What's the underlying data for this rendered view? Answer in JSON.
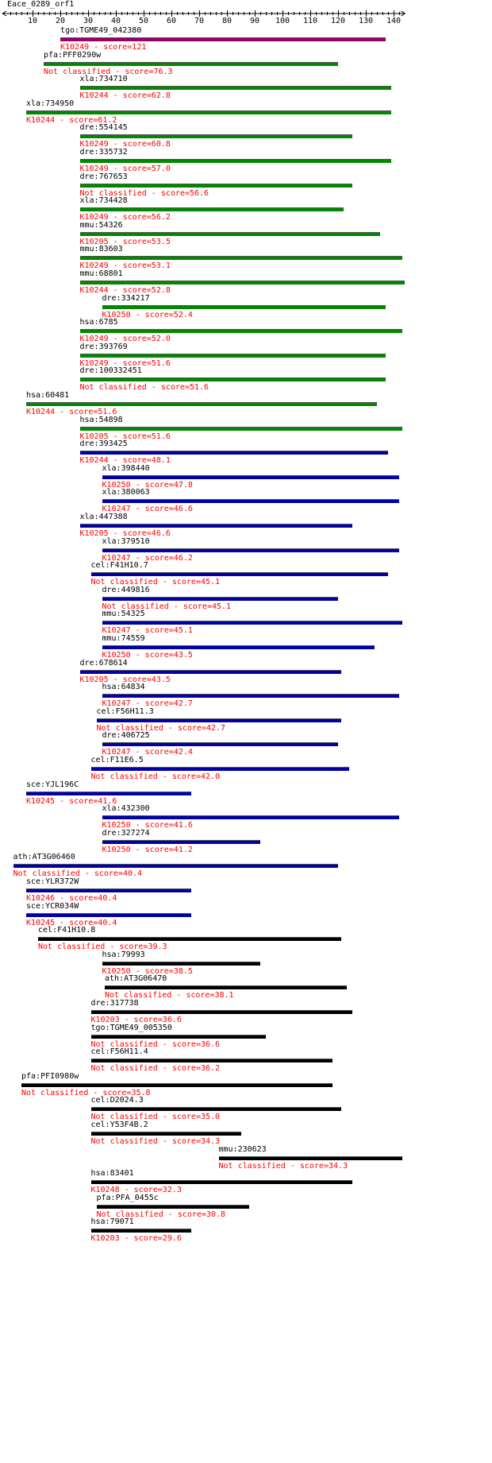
{
  "query": {
    "title": "Eace_0289_orf1"
  },
  "axis": {
    "min": 1,
    "max": 143,
    "ticks": [
      10,
      20,
      30,
      40,
      50,
      60,
      70,
      80,
      90,
      100,
      110,
      120,
      130,
      140
    ]
  },
  "colors": {
    "purple": "#990066",
    "green": "#008800",
    "blue": "#0000aa",
    "black": "#000000",
    "label": "#ff0000"
  },
  "hits": [
    {
      "name": "tgo:TGME49_042380",
      "label": "K10249 - score=121",
      "start": 20,
      "end": 137,
      "color": "purple"
    },
    {
      "name": "pfa:PFF0290w",
      "label": "Not classified - score=76.3",
      "start": 14,
      "end": 120,
      "color": "green"
    },
    {
      "name": "xla:734710",
      "label": "K10244 - score=62.8",
      "start": 27,
      "end": 139,
      "color": "green"
    },
    {
      "name": "xla:734950",
      "label": "K10244 - score=61.2",
      "start": 1,
      "end": 139,
      "color": "green"
    },
    {
      "name": "dre:554145",
      "label": "K10249 - score=60.8",
      "start": 27,
      "end": 125,
      "color": "green"
    },
    {
      "name": "dre:335732",
      "label": "K10249 - score=57.0",
      "start": 27,
      "end": 139,
      "color": "green"
    },
    {
      "name": "dre:767653",
      "label": "Not classified - score=56.6",
      "start": 27,
      "end": 125,
      "color": "green"
    },
    {
      "name": "xla:734428",
      "label": "K10249 - score=56.2",
      "start": 27,
      "end": 122,
      "color": "green"
    },
    {
      "name": "mmu:54326",
      "label": "K10205 - score=53.5",
      "start": 27,
      "end": 135,
      "color": "green"
    },
    {
      "name": "mmu:83603",
      "label": "K10249 - score=53.1",
      "start": 27,
      "end": 143,
      "color": "green"
    },
    {
      "name": "mmu:68801",
      "label": "K10244 - score=52.8",
      "start": 27,
      "end": 144,
      "color": "green"
    },
    {
      "name": "dre:334217",
      "label": "K10250 - score=52.4",
      "start": 35,
      "end": 137,
      "color": "green"
    },
    {
      "name": "hsa:6785",
      "label": "K10249 - score=52.0",
      "start": 27,
      "end": 143,
      "color": "green"
    },
    {
      "name": "dre:393769",
      "label": "K10249 - score=51.6",
      "start": 27,
      "end": 137,
      "color": "green"
    },
    {
      "name": "dre:100332451",
      "label": "Not classified - score=51.6",
      "start": 27,
      "end": 137,
      "color": "green"
    },
    {
      "name": "hsa:60481",
      "label": "K10244 - score=51.6",
      "start": 1,
      "end": 134,
      "color": "green"
    },
    {
      "name": "hsa:54898",
      "label": "K10205 - score=51.6",
      "start": 27,
      "end": 143,
      "color": "green"
    },
    {
      "name": "dre:393425",
      "label": "K10244 - score=48.1",
      "start": 27,
      "end": 138,
      "color": "blue"
    },
    {
      "name": "xla:398440",
      "label": "K10250 - score=47.8",
      "start": 35,
      "end": 142,
      "color": "blue"
    },
    {
      "name": "xla:380063",
      "label": "K10247 - score=46.6",
      "start": 35,
      "end": 142,
      "color": "blue"
    },
    {
      "name": "xla:447388",
      "label": "K10205 - score=46.6",
      "start": 27,
      "end": 125,
      "color": "blue"
    },
    {
      "name": "xla:379510",
      "label": "K10247 - score=46.2",
      "start": 35,
      "end": 142,
      "color": "blue"
    },
    {
      "name": "cel:F41H10.7",
      "label": "Not classified - score=45.1",
      "start": 31,
      "end": 138,
      "color": "blue"
    },
    {
      "name": "dre:449816",
      "label": "Not classified - score=45.1",
      "start": 35,
      "end": 120,
      "color": "blue"
    },
    {
      "name": "mmu:54325",
      "label": "K10247 - score=45.1",
      "start": 35,
      "end": 143,
      "color": "blue"
    },
    {
      "name": "mmu:74559",
      "label": "K10250 - score=43.5",
      "start": 35,
      "end": 133,
      "color": "blue"
    },
    {
      "name": "dre:678614",
      "label": "K10205 - score=43.5",
      "start": 27,
      "end": 121,
      "color": "blue"
    },
    {
      "name": "hsa:64834",
      "label": "K10247 - score=42.7",
      "start": 35,
      "end": 142,
      "color": "blue"
    },
    {
      "name": "cel:F56H11.3",
      "label": "Not classified - score=42.7",
      "start": 33,
      "end": 121,
      "color": "blue"
    },
    {
      "name": "dre:406725",
      "label": "K10247 - score=42.4",
      "start": 35,
      "end": 120,
      "color": "blue"
    },
    {
      "name": "cel:F11E6.5",
      "label": "Not classified - score=42.0",
      "start": 31,
      "end": 124,
      "color": "blue"
    },
    {
      "name": "sce:YJL196C",
      "label": "K10245 - score=41.6",
      "start": 1,
      "end": 67,
      "color": "blue"
    },
    {
      "name": "xla:432300",
      "label": "K10250 - score=41.6",
      "start": 35,
      "end": 142,
      "color": "blue"
    },
    {
      "name": "dre:327274",
      "label": "K10250 - score=41.2",
      "start": 35,
      "end": 92,
      "color": "blue"
    },
    {
      "name": "ath:AT3G06460",
      "label": "Not classified - score=40.4",
      "start": 3,
      "end": 120,
      "color": "blue"
    },
    {
      "name": "sce:YLR372W",
      "label": "K10246 - score=40.4",
      "start": 1,
      "end": 67,
      "color": "blue"
    },
    {
      "name": "sce:YCR034W",
      "label": "K10245 - score=40.4",
      "start": 1,
      "end": 67,
      "color": "blue"
    },
    {
      "name": "cel:F41H10.8",
      "label": "Not classified - score=39.3",
      "start": 12,
      "end": 121,
      "color": "black"
    },
    {
      "name": "hsa:79993",
      "label": "K10250 - score=38.5",
      "start": 35,
      "end": 92,
      "color": "black"
    },
    {
      "name": "ath:AT3G06470",
      "label": "Not classified - score=38.1",
      "start": 36,
      "end": 123,
      "color": "black"
    },
    {
      "name": "dre:317738",
      "label": "K10203 - score=36.6",
      "start": 31,
      "end": 125,
      "color": "black"
    },
    {
      "name": "tgo:TGME49_005350",
      "label": "Not classified - score=36.6",
      "start": 31,
      "end": 94,
      "color": "black"
    },
    {
      "name": "cel:F56H11.4",
      "label": "Not classified - score=36.2",
      "start": 31,
      "end": 118,
      "color": "black"
    },
    {
      "name": "pfa:PFI0980w",
      "label": "Not classified - score=35.8",
      "start": 6,
      "end": 118,
      "color": "black"
    },
    {
      "name": "cel:D2024.3",
      "label": "Not classified - score=35.0",
      "start": 31,
      "end": 121,
      "color": "black"
    },
    {
      "name": "cel:Y53F4B.2",
      "label": "Not classified - score=34.3",
      "start": 31,
      "end": 85,
      "color": "black"
    },
    {
      "name": "mmu:230623",
      "label": "Not classified - score=34.3",
      "start": 77,
      "end": 143,
      "color": "black"
    },
    {
      "name": "hsa:83401",
      "label": "K10248 - score=32.3",
      "start": 31,
      "end": 125,
      "color": "black"
    },
    {
      "name": "pfa:PFA_0455c",
      "label": "Not classified - score=30.8",
      "start": 33,
      "end": 88,
      "color": "black"
    },
    {
      "name": "hsa:79071",
      "label": "K10203 - score=29.6",
      "start": 31,
      "end": 67,
      "color": "black"
    }
  ]
}
